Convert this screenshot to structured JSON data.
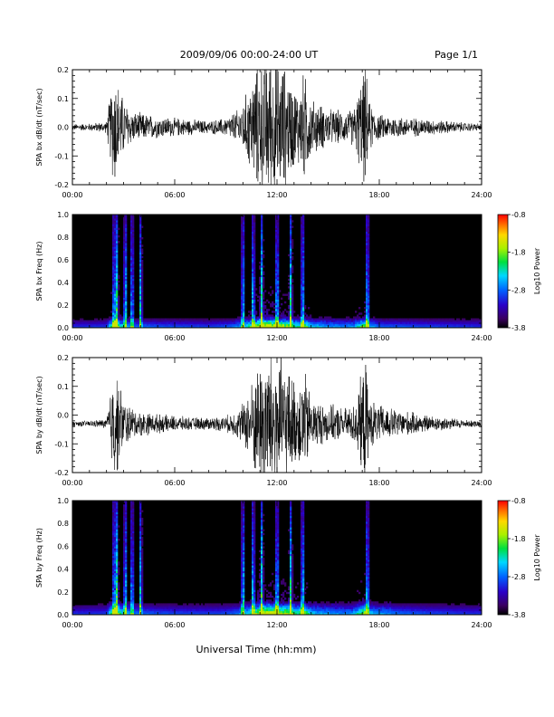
{
  "header": {
    "title": "2009/09/06  00:00-24:00 UT",
    "page": "Page 1/1"
  },
  "footer": {
    "xlabel": "Universal Time (hh:mm)"
  },
  "chart_data": [
    {
      "type": "line",
      "ylabel": "SPA bx dB/dt (nT/sec)",
      "xlim": [
        0,
        24
      ],
      "ylim": [
        -0.2,
        0.2
      ],
      "x_ticks": [
        "00:00",
        "06:00",
        "12:00",
        "18:00",
        "24:00"
      ],
      "y_ticks": [
        "-0.2",
        "-0.1",
        "0.0",
        "0.1",
        "0.2"
      ],
      "baseline": 0.0,
      "series": [
        {
          "x": [
            0,
            1,
            2,
            2.45,
            2.6,
            3.0,
            3.5,
            4,
            5,
            6,
            7,
            8,
            9,
            9.8,
            10.3,
            10.8,
            11.2,
            11.6,
            12.0,
            12.4,
            12.8,
            13.2,
            13.6,
            14,
            15,
            16,
            16.5,
            17.2,
            17.4,
            18,
            19,
            20,
            21,
            22,
            23,
            24
          ],
          "amplitude": [
            0.01,
            0.012,
            0.018,
            0.2,
            0.16,
            0.09,
            0.05,
            0.045,
            0.035,
            0.03,
            0.025,
            0.02,
            0.03,
            0.06,
            0.12,
            0.2,
            0.22,
            0.24,
            0.22,
            0.2,
            0.15,
            0.12,
            0.18,
            0.09,
            0.06,
            0.05,
            0.06,
            0.2,
            0.08,
            0.04,
            0.035,
            0.03,
            0.025,
            0.02,
            0.015,
            0.012
          ]
        }
      ]
    },
    {
      "type": "heatmap",
      "ylabel": "SPA bx Freq (Hz)",
      "xlim": [
        0,
        24
      ],
      "ylim": [
        0,
        1
      ],
      "x_ticks": [
        "00:00",
        "06:00",
        "12:00",
        "18:00",
        "24:00"
      ],
      "y_ticks": [
        "0.0",
        "0.2",
        "0.4",
        "0.6",
        "0.8",
        "1.0"
      ],
      "colorbar": {
        "label": "Log10 Power",
        "range": [
          -3.8,
          -0.8
        ],
        "ticks": [
          "-0.8",
          "-1.8",
          "-2.8",
          "-3.8"
        ],
        "colormap": "rainbow"
      },
      "hot_times": [
        2.45,
        2.6,
        3.1,
        3.5,
        4.0,
        10.0,
        10.6,
        11.1,
        12.0,
        12.8,
        13.5,
        17.3
      ],
      "low_freq_band_max": 0.1
    },
    {
      "type": "line",
      "ylabel": "SPA by dB/dt (nT/sec)",
      "xlim": [
        0,
        24
      ],
      "ylim": [
        -0.2,
        0.2
      ],
      "x_ticks": [
        "00:00",
        "06:00",
        "12:00",
        "18:00",
        "24:00"
      ],
      "y_ticks": [
        "-0.2",
        "-0.1",
        "0.0",
        "0.1",
        "0.2"
      ],
      "baseline": -0.03,
      "series": [
        {
          "x": [
            0,
            1,
            2,
            2.45,
            2.6,
            3.0,
            3.5,
            4,
            5,
            6,
            7,
            8,
            9,
            9.8,
            10.3,
            10.8,
            11.2,
            11.6,
            12.0,
            12.4,
            12.8,
            13.2,
            13.6,
            14,
            15,
            16,
            16.5,
            17.2,
            17.4,
            18,
            19,
            20,
            21,
            22,
            23,
            24
          ],
          "amplitude": [
            0.008,
            0.01,
            0.015,
            0.2,
            0.16,
            0.08,
            0.05,
            0.04,
            0.03,
            0.025,
            0.02,
            0.02,
            0.025,
            0.05,
            0.1,
            0.18,
            0.22,
            0.24,
            0.22,
            0.2,
            0.16,
            0.12,
            0.18,
            0.08,
            0.06,
            0.05,
            0.06,
            0.2,
            0.08,
            0.06,
            0.045,
            0.035,
            0.025,
            0.02,
            0.012,
            0.01
          ]
        }
      ]
    },
    {
      "type": "heatmap",
      "ylabel": "SPA by Freq (Hz)",
      "xlim": [
        0,
        24
      ],
      "ylim": [
        0,
        1
      ],
      "x_ticks": [
        "00:00",
        "06:00",
        "12:00",
        "18:00",
        "24:00"
      ],
      "y_ticks": [
        "0.0",
        "0.2",
        "0.4",
        "0.6",
        "0.8",
        "1.0"
      ],
      "colorbar": {
        "label": "Log10 Power",
        "range": [
          -3.8,
          -0.8
        ],
        "ticks": [
          "-0.8",
          "-1.8",
          "-2.8",
          "-3.8"
        ],
        "colormap": "rainbow"
      },
      "hot_times": [
        2.45,
        2.6,
        3.1,
        3.5,
        4.0,
        10.0,
        10.6,
        11.1,
        12.0,
        12.8,
        13.5,
        17.3
      ],
      "low_freq_band_max": 0.12
    }
  ]
}
